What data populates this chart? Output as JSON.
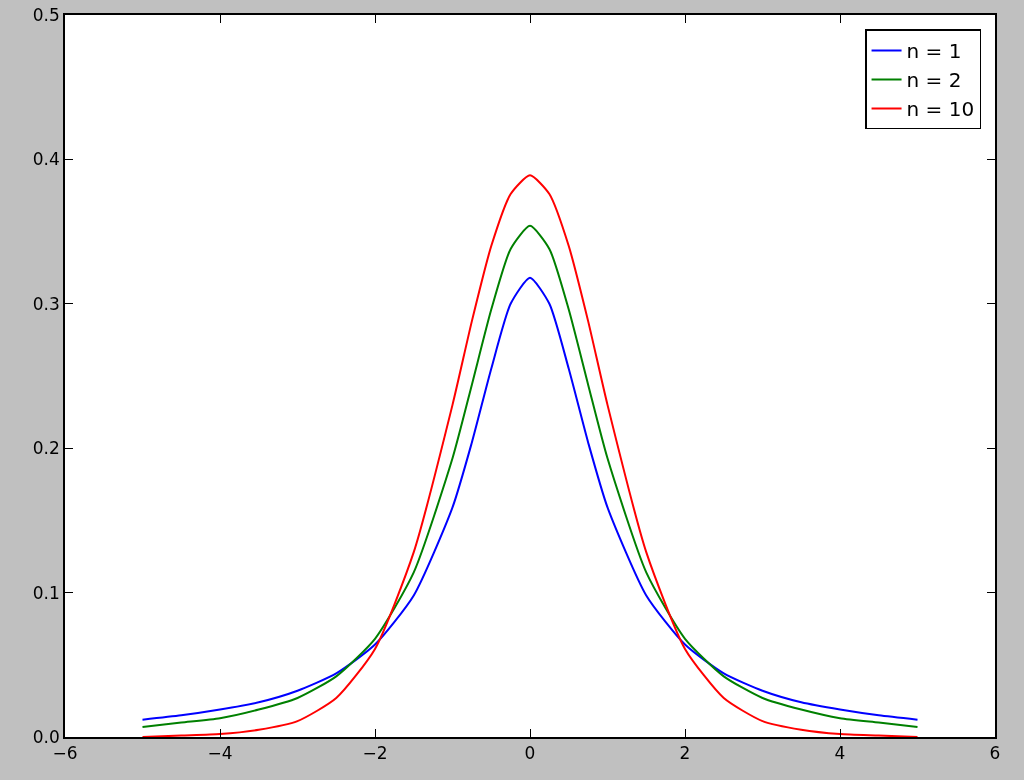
{
  "chart_data": {
    "type": "line",
    "x": [
      -5,
      -4.5,
      -4,
      -3.5,
      -3,
      -2.5,
      -2,
      -1.5,
      -1,
      -0.75,
      -0.5,
      -0.25,
      0,
      0.25,
      0.5,
      0.75,
      1,
      1.5,
      2,
      2.5,
      3,
      3.5,
      4,
      4.5,
      5
    ],
    "series": [
      {
        "name": "n = 1",
        "color": "#0000ff",
        "values": [
          0.012,
          0.015,
          0.019,
          0.024,
          0.032,
          0.044,
          0.064,
          0.098,
          0.159,
          0.204,
          0.255,
          0.3,
          0.318,
          0.3,
          0.255,
          0.204,
          0.159,
          0.098,
          0.064,
          0.044,
          0.032,
          0.024,
          0.019,
          0.015,
          0.012
        ]
      },
      {
        "name": "n = 2",
        "color": "#008000",
        "values": [
          0.007,
          0.01,
          0.013,
          0.019,
          0.027,
          0.042,
          0.068,
          0.114,
          0.193,
          0.244,
          0.296,
          0.338,
          0.354,
          0.338,
          0.296,
          0.244,
          0.193,
          0.114,
          0.068,
          0.042,
          0.027,
          0.019,
          0.013,
          0.01,
          0.007
        ]
      },
      {
        "name": "n = 10",
        "color": "#ff0000",
        "values": [
          0.0,
          0.001,
          0.002,
          0.005,
          0.011,
          0.027,
          0.061,
          0.128,
          0.23,
          0.288,
          0.34,
          0.376,
          0.389,
          0.376,
          0.34,
          0.288,
          0.23,
          0.128,
          0.061,
          0.027,
          0.011,
          0.005,
          0.002,
          0.001,
          0.0
        ]
      }
    ],
    "xlim": [
      -6,
      6
    ],
    "xticks": [
      {
        "value": -6,
        "label": "−6"
      },
      {
        "value": -4,
        "label": "−4"
      },
      {
        "value": -2,
        "label": "−2"
      },
      0,
      2,
      4,
      6
    ],
    "ylim": [
      0,
      0.5
    ],
    "yticks": [
      {
        "value": 0,
        "label": "0.0"
      },
      0.1,
      0.2,
      0.3,
      0.4,
      0.5
    ],
    "grid": false,
    "legend": "top right",
    "line_style": "solid"
  }
}
